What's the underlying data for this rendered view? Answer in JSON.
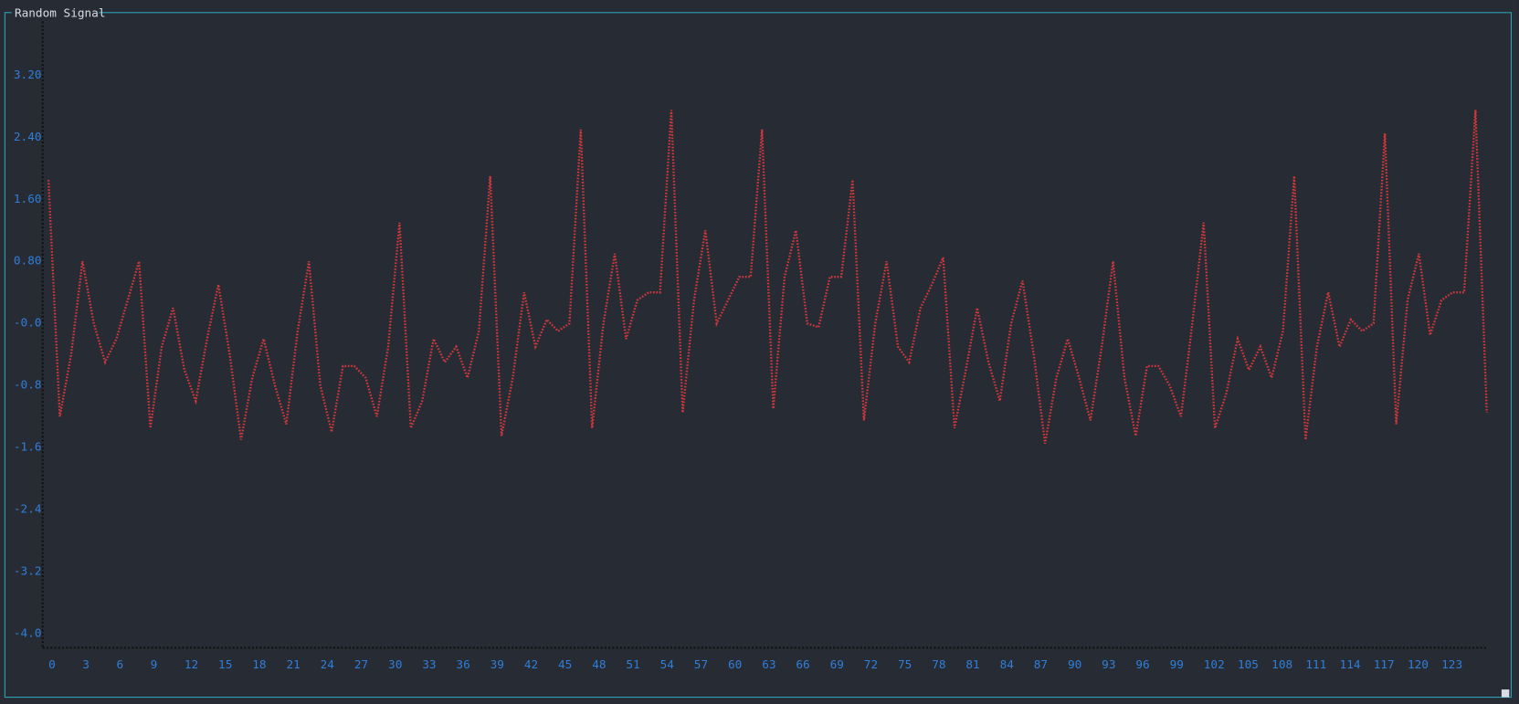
{
  "chart_data": {
    "type": "line",
    "title": "Random Signal",
    "x": [
      0,
      1,
      2,
      3,
      4,
      5,
      6,
      7,
      8,
      9,
      10,
      11,
      12,
      13,
      14,
      15,
      16,
      17,
      18,
      19,
      20,
      21,
      22,
      23,
      24,
      25,
      26,
      27,
      28,
      29,
      30,
      31,
      32,
      33,
      34,
      35,
      36,
      37,
      38,
      39,
      40,
      41,
      42,
      43,
      44,
      45,
      46,
      47,
      48,
      49,
      50,
      51,
      52,
      53,
      54,
      55,
      56,
      57,
      58,
      59,
      60,
      61,
      62,
      63,
      64,
      65,
      66,
      67,
      68,
      69,
      70,
      71,
      72,
      73,
      74,
      75,
      76,
      77,
      78,
      79,
      80,
      81,
      82,
      83,
      84,
      85,
      86,
      87,
      88,
      89,
      90,
      91,
      92,
      93,
      94,
      95,
      96,
      97,
      98,
      99,
      100,
      101,
      102,
      103,
      104,
      105,
      106,
      107,
      108,
      109,
      110,
      111,
      112,
      113,
      114,
      115,
      116,
      117,
      118,
      119,
      120,
      121,
      122,
      123,
      124,
      125,
      126,
      127
    ],
    "values": [
      1.85,
      -1.2,
      -0.4,
      0.8,
      0.0,
      -0.5,
      -0.2,
      0.3,
      0.8,
      -1.35,
      -0.3,
      0.2,
      -0.6,
      -1.0,
      -0.2,
      0.5,
      -0.4,
      -1.5,
      -0.7,
      -0.2,
      -0.8,
      -1.3,
      -0.1,
      0.8,
      -0.8,
      -1.4,
      -0.55,
      -0.55,
      -0.7,
      -1.2,
      -0.3,
      1.3,
      -1.35,
      -1.0,
      -0.2,
      -0.5,
      -0.3,
      -0.7,
      -0.1,
      1.9,
      -1.45,
      -0.7,
      0.4,
      -0.3,
      0.05,
      -0.1,
      0.0,
      2.5,
      -1.35,
      0.0,
      0.9,
      -0.2,
      0.3,
      0.4,
      0.4,
      2.75,
      -1.15,
      0.3,
      1.2,
      0.0,
      0.3,
      0.6,
      0.6,
      2.5,
      -1.1,
      0.6,
      1.2,
      0.0,
      -0.05,
      0.6,
      0.6,
      1.85,
      -1.25,
      0.0,
      0.8,
      -0.3,
      -0.5,
      0.2,
      0.5,
      0.85,
      -1.35,
      -0.6,
      0.2,
      -0.5,
      -1.0,
      0.0,
      0.55,
      -0.4,
      -1.55,
      -0.7,
      -0.2,
      -0.7,
      -1.25,
      -0.3,
      0.8,
      -0.7,
      -1.45,
      -0.55,
      -0.55,
      -0.8,
      -1.2,
      0.0,
      1.3,
      -1.35,
      -0.9,
      -0.2,
      -0.6,
      -0.3,
      -0.7,
      -0.1,
      1.9,
      -1.5,
      -0.3,
      0.4,
      -0.3,
      0.05,
      -0.1,
      0.0,
      2.45,
      -1.3,
      0.3,
      0.9,
      -0.15,
      0.3,
      0.4,
      0.4,
      2.75,
      -1.15
    ],
    "color": "#d0383c",
    "xlim": [
      0,
      127
    ],
    "ylim": [
      -4.16,
      3.9
    ],
    "xticks": [
      0,
      3,
      6,
      9,
      12,
      15,
      18,
      21,
      24,
      27,
      30,
      33,
      36,
      39,
      42,
      45,
      48,
      51,
      54,
      57,
      60,
      63,
      66,
      69,
      72,
      75,
      78,
      81,
      84,
      87,
      90,
      93,
      96,
      99,
      102,
      105,
      108,
      111,
      114,
      117,
      120,
      123
    ],
    "yticks": [
      {
        "value": 3.2,
        "label": "3.20"
      },
      {
        "value": 2.4,
        "label": "2.40"
      },
      {
        "value": 1.6,
        "label": "1.60"
      },
      {
        "value": 0.8,
        "label": "0.80"
      },
      {
        "value": 0,
        "label": "-0.0"
      },
      -0.8,
      -1.6,
      -2.4,
      -3.2,
      {
        "value": -4.0,
        "label": "-4.0"
      }
    ]
  }
}
